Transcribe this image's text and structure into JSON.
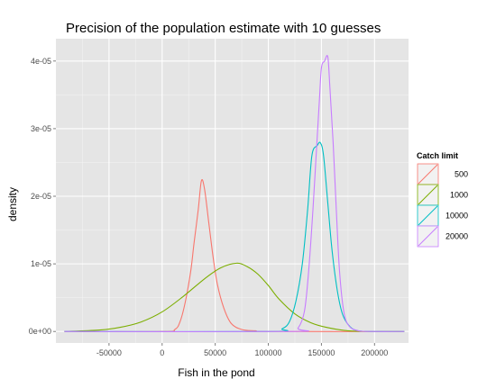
{
  "chart_data": {
    "type": "line",
    "title": "Precision of the population estimate with 10 guesses",
    "xlabel": "Fish in the pond",
    "ylabel": "density",
    "xlim": [
      -100000,
      232000
    ],
    "ylim": [
      -1.7e-06,
      4.33e-05
    ],
    "x_ticks": [
      -50000,
      0,
      50000,
      100000,
      150000,
      200000
    ],
    "x_tick_labels": [
      "-50000",
      "0",
      "50000",
      "100000",
      "150000",
      "200000"
    ],
    "y_ticks": [
      0,
      1e-05,
      2e-05,
      3e-05,
      4e-05
    ],
    "y_tick_labels": [
      "0e+00",
      "1e-05",
      "2e-05",
      "3e-05",
      "4e-05"
    ],
    "grid": true,
    "legend": {
      "title": "Catch limit",
      "position": "right",
      "entries": [
        "500",
        "1000",
        "10000",
        "20000"
      ]
    },
    "series": [
      {
        "name": "500",
        "color": "#F8766D",
        "points": [
          [
            -92000,
            0
          ],
          [
            0,
            0
          ],
          [
            12000,
            3e-07
          ],
          [
            17000,
            1.5e-06
          ],
          [
            22000,
            4.5e-06
          ],
          [
            27000,
            9e-06
          ],
          [
            30000,
            1.3e-05
          ],
          [
            34000,
            1.8e-05
          ],
          [
            37000,
            2.23e-05
          ],
          [
            40000,
            2.1e-05
          ],
          [
            44000,
            1.6e-05
          ],
          [
            48000,
            1.1e-05
          ],
          [
            52000,
            7e-06
          ],
          [
            58000,
            3.5e-06
          ],
          [
            65000,
            1.2e-06
          ],
          [
            75000,
            3e-07
          ],
          [
            88000,
            1e-07
          ],
          [
            100000,
            0
          ],
          [
            228000,
            0
          ]
        ]
      },
      {
        "name": "1000",
        "color": "#7CAE00",
        "points": [
          [
            -92000,
            0
          ],
          [
            -60000,
            2e-07
          ],
          [
            -40000,
            6e-07
          ],
          [
            -20000,
            1.4e-06
          ],
          [
            0,
            2.9e-06
          ],
          [
            20000,
            5.2e-06
          ],
          [
            40000,
            7.8e-06
          ],
          [
            55000,
            9.4e-06
          ],
          [
            70000,
            1.01e-05
          ],
          [
            80000,
            9.6e-06
          ],
          [
            90000,
            8.5e-06
          ],
          [
            100000,
            6.8e-06
          ],
          [
            110000,
            4.8e-06
          ],
          [
            125000,
            2.6e-06
          ],
          [
            140000,
            1.3e-06
          ],
          [
            155000,
            6e-07
          ],
          [
            175000,
            1e-07
          ],
          [
            200000,
            0
          ],
          [
            228000,
            0
          ]
        ]
      },
      {
        "name": "10000",
        "color": "#00BFC4",
        "points": [
          [
            -92000,
            0
          ],
          [
            100000,
            0
          ],
          [
            113000,
            4e-07
          ],
          [
            120000,
            1.5e-06
          ],
          [
            126000,
            4.5e-06
          ],
          [
            132000,
            1e-05
          ],
          [
            137000,
            1.8e-05
          ],
          [
            141000,
            2.6e-05
          ],
          [
            146000,
            2.75e-05
          ],
          [
            149000,
            2.79e-05
          ],
          [
            152000,
            2.6e-05
          ],
          [
            156000,
            1.9e-05
          ],
          [
            160000,
            1.2e-05
          ],
          [
            165000,
            6e-06
          ],
          [
            170000,
            2.5e-06
          ],
          [
            177000,
            7e-07
          ],
          [
            185000,
            1e-07
          ],
          [
            200000,
            0
          ],
          [
            228000,
            0
          ]
        ]
      },
      {
        "name": "20000",
        "color": "#C77CFF",
        "points": [
          [
            -92000,
            0
          ],
          [
            120000,
            0
          ],
          [
            128000,
            5e-07
          ],
          [
            134000,
            3e-06
          ],
          [
            138000,
            9e-06
          ],
          [
            142000,
            1.8e-05
          ],
          [
            145000,
            2.6e-05
          ],
          [
            148000,
            3.4e-05
          ],
          [
            150000,
            3.9e-05
          ],
          [
            153000,
            4e-05
          ],
          [
            156000,
            4.06e-05
          ],
          [
            158000,
            3.6e-05
          ],
          [
            161000,
            2.8e-05
          ],
          [
            164000,
            1.8e-05
          ],
          [
            167000,
            9e-06
          ],
          [
            171000,
            3e-06
          ],
          [
            176000,
            8e-07
          ],
          [
            185000,
            1e-07
          ],
          [
            200000,
            0
          ],
          [
            228000,
            0
          ]
        ]
      }
    ]
  }
}
